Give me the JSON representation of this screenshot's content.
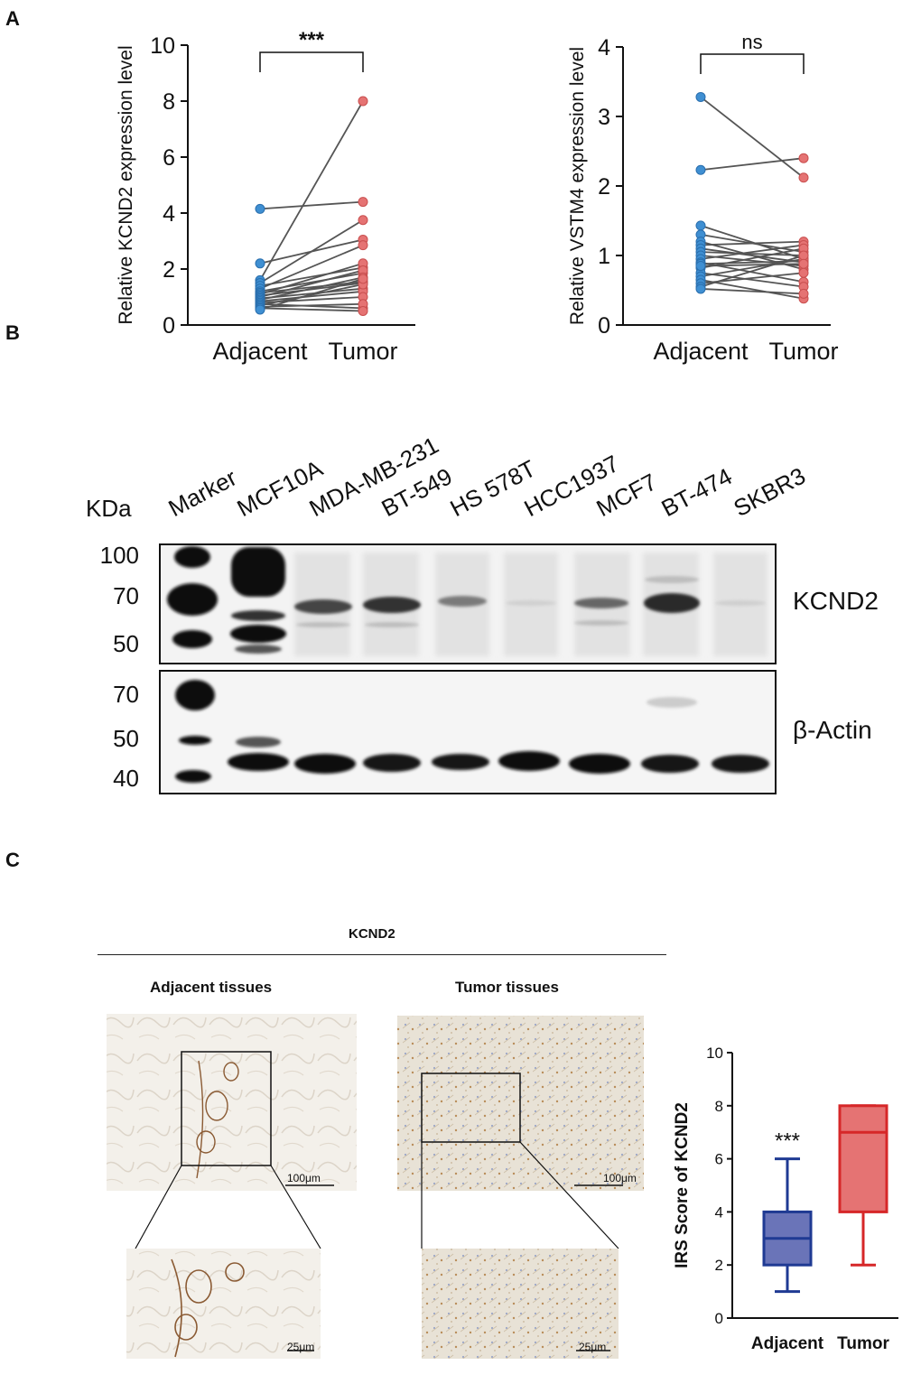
{
  "panels": {
    "a": "A",
    "b": "B",
    "c": "C"
  },
  "chart_data": [
    {
      "type": "scatter",
      "subtype": "paired-dot",
      "ylabel": "Relative KCND2 expression level",
      "categories": [
        "Adjacent",
        "Tumor"
      ],
      "ylim": [
        0,
        10
      ],
      "yticks": [
        0,
        2,
        4,
        6,
        8,
        10
      ],
      "significance": "***",
      "colors": {
        "adjacent": "#3f8fd2",
        "tumor": "#e57373",
        "line": "#555555"
      },
      "pairs": [
        [
          4.15,
          4.4
        ],
        [
          2.2,
          3.05
        ],
        [
          1.6,
          8.0
        ],
        [
          1.5,
          3.75
        ],
        [
          1.4,
          2.05
        ],
        [
          1.3,
          2.85
        ],
        [
          1.2,
          1.85
        ],
        [
          1.15,
          1.55
        ],
        [
          1.1,
          2.2
        ],
        [
          1.05,
          1.5
        ],
        [
          1.0,
          1.95
        ],
        [
          0.95,
          1.3
        ],
        [
          0.9,
          1.7
        ],
        [
          0.85,
          1.2
        ],
        [
          0.8,
          1.0
        ],
        [
          0.75,
          0.6
        ],
        [
          0.7,
          1.45
        ],
        [
          0.65,
          0.75
        ],
        [
          0.6,
          0.5
        ],
        [
          0.55,
          1.65
        ]
      ]
    },
    {
      "type": "scatter",
      "subtype": "paired-dot",
      "ylabel": "Relative  VSTM4 expression level",
      "categories": [
        "Adjacent",
        "Tumor"
      ],
      "ylim": [
        0,
        4
      ],
      "yticks": [
        0,
        1,
        2,
        3,
        4
      ],
      "significance": "ns",
      "colors": {
        "adjacent": "#3f8fd2",
        "tumor": "#e57373",
        "line": "#555555"
      },
      "pairs": [
        [
          3.28,
          2.12
        ],
        [
          2.23,
          2.4
        ],
        [
          1.43,
          0.95
        ],
        [
          1.3,
          1.05
        ],
        [
          1.2,
          0.8
        ],
        [
          1.15,
          1.2
        ],
        [
          1.1,
          0.9
        ],
        [
          1.05,
          1.0
        ],
        [
          1.0,
          0.85
        ],
        [
          0.95,
          1.15
        ],
        [
          0.9,
          0.62
        ],
        [
          0.88,
          0.92
        ],
        [
          0.82,
          1.1
        ],
        [
          0.75,
          0.55
        ],
        [
          0.7,
          0.95
        ],
        [
          0.65,
          0.38
        ],
        [
          0.6,
          0.75
        ],
        [
          0.55,
          1.0
        ],
        [
          0.52,
          0.45
        ],
        [
          0.85,
          0.88
        ]
      ]
    },
    {
      "type": "box",
      "ylabel": "IRS Score of KCND2",
      "categories": [
        "Adjacent",
        "Tumor"
      ],
      "ylim": [
        0,
        10
      ],
      "yticks": [
        0,
        2,
        4,
        6,
        8,
        10
      ],
      "significance": "***",
      "boxes": [
        {
          "name": "Adjacent",
          "min": 1,
          "q1": 2,
          "median": 3,
          "q3": 4,
          "max": 6,
          "fill": "#6a74b8",
          "stroke": "#1f3a93"
        },
        {
          "name": "Tumor",
          "min": 2,
          "q1": 4,
          "median": 7,
          "q3": 8,
          "max": 8,
          "fill": "#e57373",
          "stroke": "#d62728"
        }
      ]
    }
  ],
  "western": {
    "kda_label": "KDa",
    "lanes": [
      "Marker",
      "MCF10A",
      "MDA-MB-231",
      "BT-549",
      "HS 578T",
      "HCC1937",
      "MCF7",
      "BT-474",
      "SKBR3"
    ],
    "top_blot": {
      "name": "KCND2",
      "markers": [
        "100",
        "70",
        "50"
      ]
    },
    "bottom_blot": {
      "name": "β-Actin",
      "markers": [
        "70",
        "50",
        "40"
      ]
    }
  },
  "ihc": {
    "header": "KCND2",
    "adjacent_title": "Adjacent   tissues",
    "tumor_title": "Tumor   tissues",
    "scale_large": "100μm",
    "scale_small": "25μm"
  }
}
